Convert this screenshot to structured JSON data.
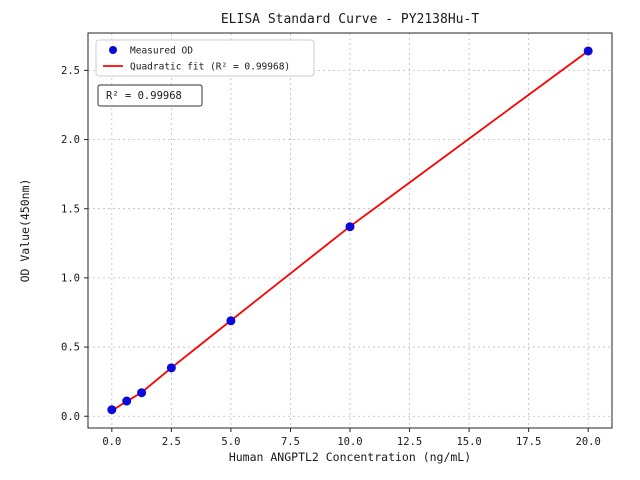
{
  "chart_data": {
    "type": "scatter",
    "title": "ELISA Standard Curve - PY2138Hu-T",
    "xlabel": "Human ANGPTL2 Concentration (ng/mL)",
    "ylabel": "OD Value(450nm)",
    "xlim": [
      -1,
      21
    ],
    "ylim": [
      -0.085,
      2.77
    ],
    "xticks": [
      0,
      2.5,
      5,
      7.5,
      10,
      12.5,
      15,
      17.5,
      20
    ],
    "xtick_labels": [
      "0.0",
      "2.5",
      "5.0",
      "7.5",
      "10.0",
      "12.5",
      "15.0",
      "17.5",
      "20.0"
    ],
    "yticks": [
      0,
      0.5,
      1.0,
      1.5,
      2.0,
      2.5
    ],
    "ytick_labels": [
      "0.0",
      "0.5",
      "1.0",
      "1.5",
      "2.0",
      "2.5"
    ],
    "grid": true,
    "grid_color": "#bbbbbb",
    "spine_color": "#262626",
    "series": [
      {
        "name": "Measured OD",
        "type": "scatter",
        "color": "#0909d9",
        "marker": "circle",
        "x": [
          0,
          0.625,
          1.25,
          2.5,
          5,
          10,
          20
        ],
        "y": [
          0.047,
          0.11,
          0.17,
          0.35,
          0.69,
          1.37,
          2.64
        ]
      },
      {
        "name": "Quadratic fit",
        "type": "line",
        "color": "#ff0000",
        "x": [
          0,
          0.625,
          1.25,
          2.5,
          5,
          10,
          20
        ],
        "y": [
          0.04,
          0.108,
          0.172,
          0.35,
          0.692,
          1.372,
          2.64
        ]
      }
    ],
    "legend": {
      "position": "upper-left",
      "items": [
        {
          "label": "Measured OD",
          "marker": "dot",
          "color": "#0909d9"
        },
        {
          "label": "Quadratic fit (R² = 0.99968)",
          "marker": "line",
          "color": "#ff0000"
        }
      ]
    },
    "annotation": {
      "text": "R² = 0.99968"
    },
    "r_squared": "0.99968"
  }
}
